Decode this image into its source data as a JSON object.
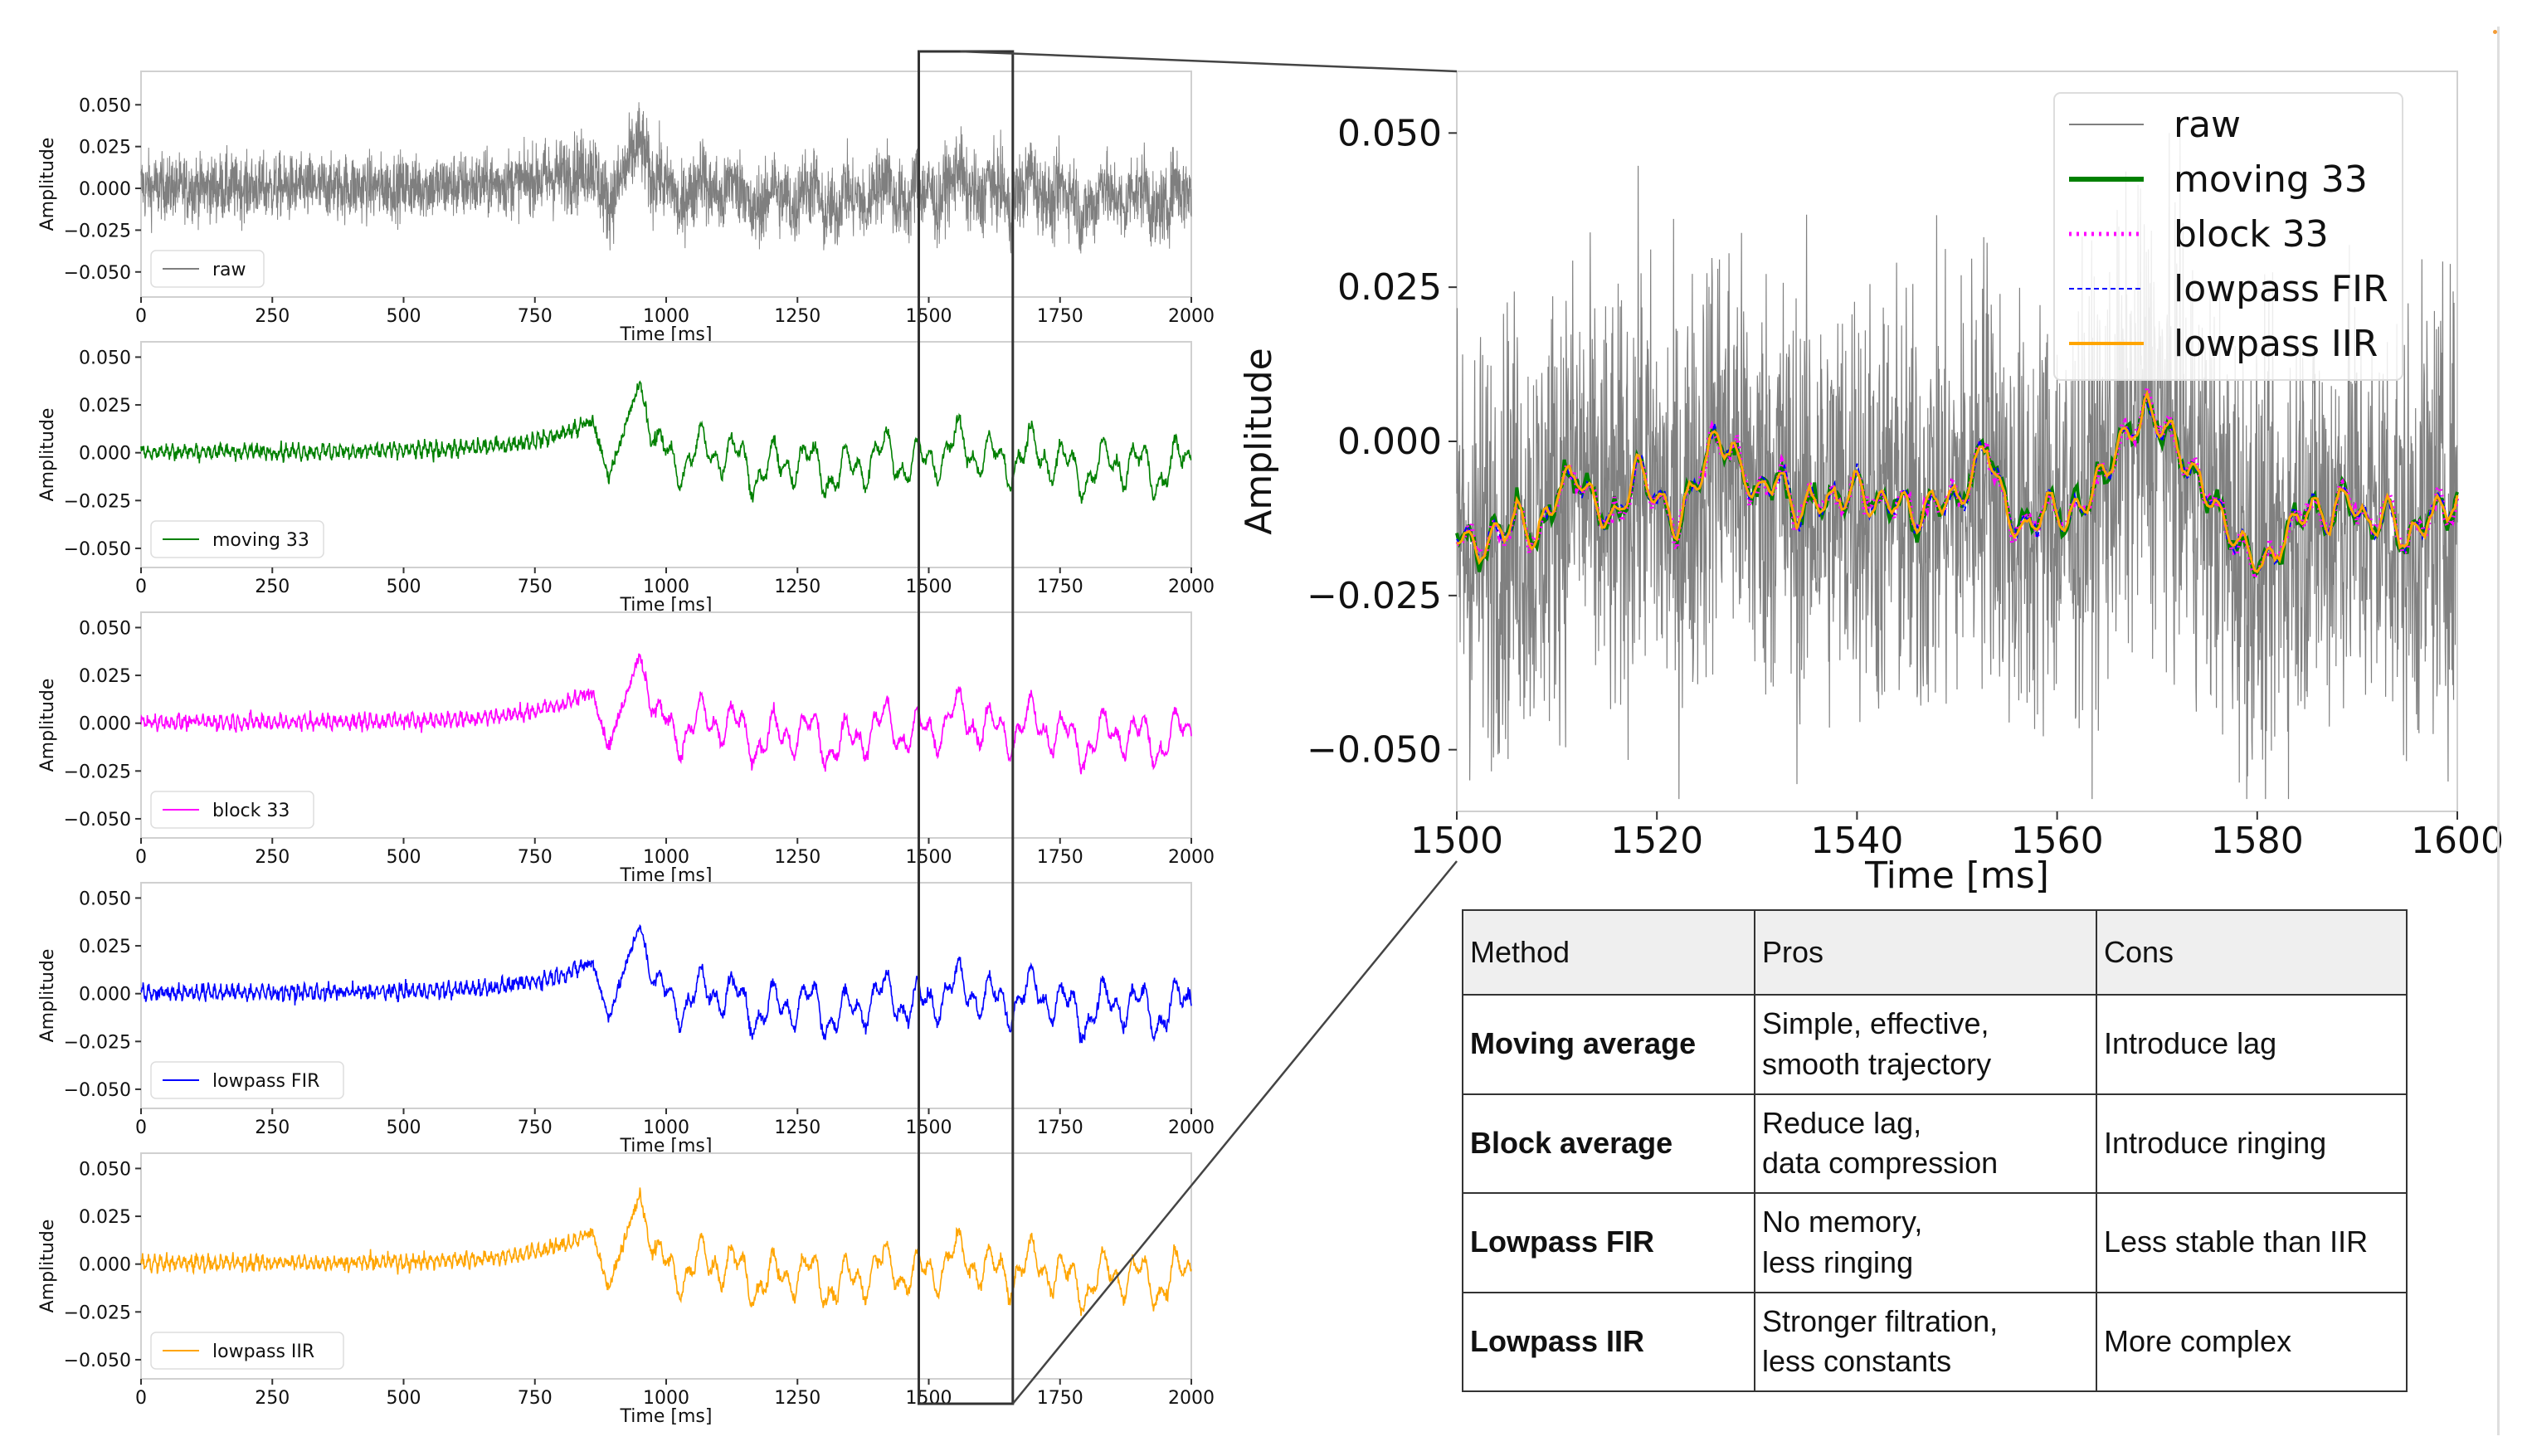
{
  "chart_data": [
    {
      "type": "line",
      "panel": "raw",
      "series_name": "raw",
      "color": "#7f7f7f",
      "xlim": [
        0,
        2000
      ],
      "ylim": [
        -0.065,
        0.07
      ],
      "xticks": [
        "0",
        "250",
        "500",
        "750",
        "1000",
        "1250",
        "1500",
        "1750",
        "2000"
      ],
      "yticks": [
        "0.050",
        "0.025",
        "0.000",
        "−0.025",
        "−0.050"
      ],
      "xlabel": "Time [ms]",
      "ylabel": "Amplitude",
      "legend": "raw"
    },
    {
      "type": "line",
      "panel": "moving",
      "series_name": "moving 33",
      "color": "#008000",
      "xlim": [
        0,
        2000
      ],
      "ylim": [
        -0.06,
        0.058
      ],
      "xticks": [
        "0",
        "250",
        "500",
        "750",
        "1000",
        "1250",
        "1500",
        "1750",
        "2000"
      ],
      "yticks": [
        "0.050",
        "0.025",
        "0.000",
        "−0.025",
        "−0.050"
      ],
      "xlabel": "Time [ms]",
      "ylabel": "Amplitude",
      "legend": "moving 33"
    },
    {
      "type": "line",
      "panel": "block",
      "series_name": "block 33",
      "color": "#ff00ff",
      "xlim": [
        0,
        2000
      ],
      "ylim": [
        -0.06,
        0.058
      ],
      "xticks": [
        "0",
        "250",
        "500",
        "750",
        "1000",
        "1250",
        "1500",
        "1750",
        "2000"
      ],
      "yticks": [
        "0.050",
        "0.025",
        "0.000",
        "−0.025",
        "−0.050"
      ],
      "xlabel": "Time [ms]",
      "ylabel": "Amplitude",
      "legend": "block 33"
    },
    {
      "type": "line",
      "panel": "fir",
      "series_name": "lowpass FIR",
      "color": "#0000ff",
      "xlim": [
        0,
        2000
      ],
      "ylim": [
        -0.06,
        0.058
      ],
      "xticks": [
        "0",
        "250",
        "500",
        "750",
        "1000",
        "1250",
        "1500",
        "1750",
        "2000"
      ],
      "yticks": [
        "0.050",
        "0.025",
        "0.000",
        "−0.025",
        "−0.050"
      ],
      "xlabel": "Time [ms]",
      "ylabel": "Amplitude",
      "legend": "lowpass FIR"
    },
    {
      "type": "line",
      "panel": "iir",
      "series_name": "lowpass IIR",
      "color": "#ffa500",
      "xlim": [
        0,
        2000
      ],
      "ylim": [
        -0.06,
        0.058
      ],
      "xticks": [
        "0",
        "250",
        "500",
        "750",
        "1000",
        "1250",
        "1500",
        "1750",
        "2000"
      ],
      "yticks": [
        "0.050",
        "0.025",
        "0.000",
        "−0.025",
        "−0.050"
      ],
      "xlabel": "Time [ms]",
      "ylabel": "Amplitude",
      "legend": "lowpass IIR"
    },
    {
      "type": "line",
      "panel": "zoom",
      "xlim": [
        1500,
        1600
      ],
      "ylim": [
        -0.06,
        0.06
      ],
      "xticks": [
        "1500",
        "1520",
        "1540",
        "1560",
        "1580",
        "1600"
      ],
      "yticks": [
        "0.050",
        "0.025",
        "0.000",
        "−0.025",
        "−0.050"
      ],
      "xlabel": "Time [ms]",
      "ylabel": "Amplitude",
      "legend": [
        {
          "label": "raw",
          "color": "#7f7f7f",
          "style": "solid-thin"
        },
        {
          "label": "moving 33",
          "color": "#008000",
          "style": "solid-thick"
        },
        {
          "label": "block 33",
          "color": "#ff00ff",
          "style": "dotted"
        },
        {
          "label": "lowpass FIR",
          "color": "#0000ff",
          "style": "dashed"
        },
        {
          "label": "lowpass IIR",
          "color": "#ffa500",
          "style": "solid"
        }
      ],
      "trend_points": [
        [
          1500,
          -0.014
        ],
        [
          1502,
          -0.018
        ],
        [
          1504,
          -0.015
        ],
        [
          1506,
          -0.012
        ],
        [
          1508,
          -0.016
        ],
        [
          1510,
          -0.008
        ],
        [
          1512,
          -0.005
        ],
        [
          1514,
          -0.011
        ],
        [
          1516,
          -0.013
        ],
        [
          1518,
          -0.004
        ],
        [
          1520,
          -0.009
        ],
        [
          1522,
          -0.014
        ],
        [
          1524,
          -0.006
        ],
        [
          1526,
          0.001
        ],
        [
          1528,
          -0.003
        ],
        [
          1530,
          -0.009
        ],
        [
          1532,
          -0.005
        ],
        [
          1534,
          -0.012
        ],
        [
          1536,
          -0.009
        ],
        [
          1538,
          -0.01
        ],
        [
          1540,
          -0.007
        ],
        [
          1542,
          -0.011
        ],
        [
          1544,
          -0.009
        ],
        [
          1546,
          -0.013
        ],
        [
          1548,
          -0.009
        ],
        [
          1550,
          -0.01
        ],
        [
          1552,
          -0.004
        ],
        [
          1553,
          0.0
        ],
        [
          1555,
          -0.012
        ],
        [
          1557,
          -0.015
        ],
        [
          1559,
          -0.01
        ],
        [
          1561,
          -0.013
        ],
        [
          1563,
          -0.009
        ],
        [
          1565,
          -0.004
        ],
        [
          1567,
          0.001
        ],
        [
          1569,
          0.005
        ],
        [
          1571,
          0.002
        ],
        [
          1573,
          -0.004
        ],
        [
          1575,
          -0.008
        ],
        [
          1577,
          -0.014
        ],
        [
          1579,
          -0.018
        ],
        [
          1581,
          -0.02
        ],
        [
          1583,
          -0.015
        ],
        [
          1585,
          -0.01
        ],
        [
          1587,
          -0.013
        ],
        [
          1589,
          -0.008
        ],
        [
          1591,
          -0.014
        ],
        [
          1593,
          -0.011
        ],
        [
          1595,
          -0.017
        ],
        [
          1597,
          -0.012
        ],
        [
          1600,
          -0.01
        ]
      ]
    }
  ],
  "zoom_window": {
    "x_start": 1500,
    "x_end": 1600
  },
  "table": {
    "headers": [
      "Method",
      "Pros",
      "Cons"
    ],
    "rows": [
      {
        "method": "Moving average",
        "pros": [
          "Simple, effective,",
          "smooth trajectory"
        ],
        "cons": "Introduce lag"
      },
      {
        "method": "Block average",
        "pros": [
          "Reduce lag,",
          "data compression"
        ],
        "cons": "Introduce ringing"
      },
      {
        "method": "Lowpass FIR",
        "pros": [
          "No memory,",
          "less ringing"
        ],
        "cons": "Less stable than IIR"
      },
      {
        "method": "Lowpass IIR",
        "pros": [
          "Stronger filtration,",
          "less constants"
        ],
        "cons": "More complex"
      }
    ]
  }
}
